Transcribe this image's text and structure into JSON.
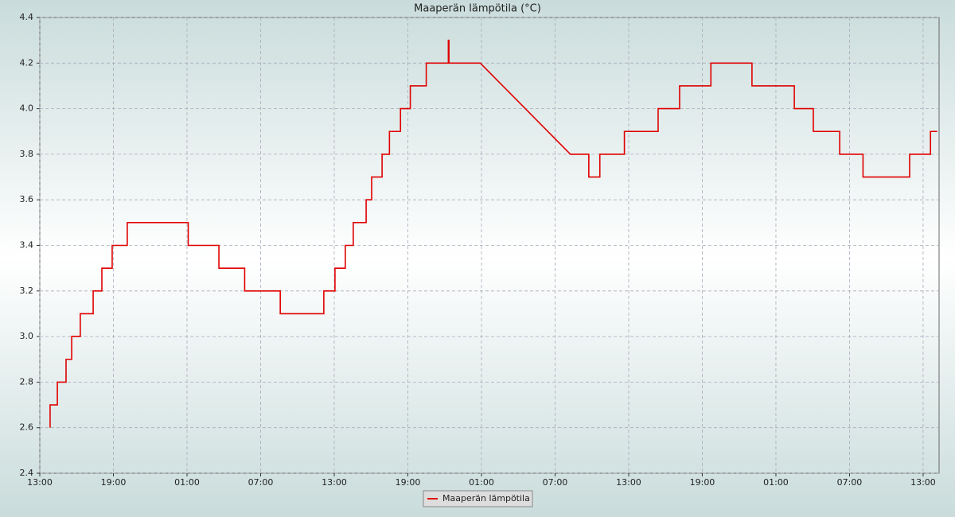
{
  "chart_data": {
    "type": "line",
    "title": "Maaperän lämpötila (°C)",
    "series": [
      {
        "name": "Maaperän lämpötila",
        "color": "#e00000",
        "x": [
          0.84,
          0.84,
          1.43,
          1.43,
          2.14,
          2.14,
          2.6,
          2.6,
          3.3,
          3.3,
          4.35,
          4.35,
          5.06,
          5.06,
          5.9,
          5.9,
          7.13,
          7.13,
          12.1,
          12.1,
          14.6,
          14.6,
          16.7,
          16.7,
          19.6,
          19.6,
          23.15,
          23.15,
          24.06,
          24.06,
          24.9,
          24.9,
          25.55,
          25.55,
          26.6,
          26.6,
          27.05,
          27.05,
          27.9,
          27.9,
          28.5,
          28.5,
          29.4,
          29.4,
          30.2,
          30.2,
          31.5,
          31.5,
          33.3,
          33.3,
          33.35,
          33.35,
          35.9,
          43.25,
          44.75,
          44.75,
          45.65,
          45.65,
          47.65,
          47.65,
          50.4,
          50.4,
          52.15,
          52.15,
          54.7,
          54.7,
          58.05,
          58.05,
          61.5,
          61.5,
          63.05,
          63.05,
          65.2,
          65.2,
          67.1,
          67.1,
          70.9,
          70.9,
          72.6,
          72.6,
          73.15
        ],
        "values": [
          2.6,
          2.7,
          2.7,
          2.8,
          2.8,
          2.9,
          2.9,
          3.0,
          3.0,
          3.1,
          3.1,
          3.2,
          3.2,
          3.3,
          3.3,
          3.4,
          3.4,
          3.5,
          3.5,
          3.4,
          3.4,
          3.3,
          3.3,
          3.2,
          3.2,
          3.1,
          3.1,
          3.2,
          3.2,
          3.3,
          3.3,
          3.4,
          3.4,
          3.5,
          3.5,
          3.6,
          3.6,
          3.7,
          3.7,
          3.8,
          3.8,
          3.9,
          3.9,
          4.0,
          4.0,
          4.1,
          4.1,
          4.2,
          4.2,
          4.3,
          4.3,
          4.2,
          4.2,
          3.8,
          3.8,
          3.7,
          3.7,
          3.8,
          3.8,
          3.9,
          3.9,
          4.0,
          4.0,
          4.1,
          4.1,
          4.2,
          4.2,
          4.1,
          4.1,
          4.0,
          4.0,
          3.9,
          3.9,
          3.8,
          3.8,
          3.7,
          3.7,
          3.8,
          3.8,
          3.9,
          3.9
        ]
      }
    ],
    "xlim": [
      0,
      73.3
    ],
    "xticks": [
      {
        "value": 0,
        "label": "13:00"
      },
      {
        "value": 6,
        "label": "19:00"
      },
      {
        "value": 12,
        "label": "01:00"
      },
      {
        "value": 18,
        "label": "07:00"
      },
      {
        "value": 24,
        "label": "13:00"
      },
      {
        "value": 30,
        "label": "19:00"
      },
      {
        "value": 36,
        "label": "01:00"
      },
      {
        "value": 42,
        "label": "07:00"
      },
      {
        "value": 48,
        "label": "13:00"
      },
      {
        "value": 54,
        "label": "19:00"
      },
      {
        "value": 60,
        "label": "01:00"
      },
      {
        "value": 66,
        "label": "07:00"
      },
      {
        "value": 72,
        "label": "13:00"
      }
    ],
    "ylim": [
      2.4,
      4.4
    ],
    "yticks": [
      2.4,
      2.6,
      2.8,
      {
        "value": 3.0,
        "label": "3.0"
      },
      3.2,
      3.4,
      3.6,
      3.8,
      {
        "value": 4.0,
        "label": "4.0"
      },
      4.2,
      4.4
    ],
    "grid": true,
    "legend": "bottom"
  }
}
